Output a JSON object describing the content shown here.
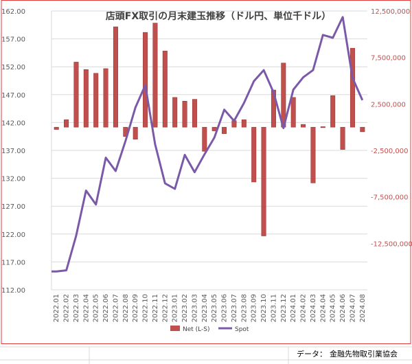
{
  "chart_data": {
    "type": "bar+line",
    "title": "店頭FX取引の月末建玉推移（ドル円、単位千ドル）",
    "categories": [
      "2022.01",
      "2022.02",
      "2022.03",
      "2022.04",
      "2022.05",
      "2022.06",
      "2022.07",
      "2022.08",
      "2022.09",
      "2022.10",
      "2022.11",
      "2022.12",
      "2023.01",
      "2023.02",
      "2023.03",
      "2023.04",
      "2023.05",
      "2023.06",
      "2023.07",
      "2023.08",
      "2023.09",
      "2023.10",
      "2023.11",
      "2023.12",
      "2024.01",
      "2024.02",
      "2024.03",
      "2024.04",
      "2024.05",
      "2024.06",
      "2024.07",
      "2024.08"
    ],
    "left_axis": {
      "ylim": [
        112,
        162
      ],
      "ticks": [
        "162.00",
        "157.00",
        "152.00",
        "147.00",
        "142.00",
        "137.00",
        "132.00",
        "127.00",
        "122.00",
        "117.00",
        "112.00"
      ]
    },
    "right_axis": {
      "ylim": [
        -17500000,
        12500000
      ],
      "ticks": [
        "12,500,000",
        "7,500,000",
        "2,500,000",
        "-2,500,000",
        "-7,500,000",
        "-12,500,000"
      ]
    },
    "series": [
      {
        "name": "Net (L-S)",
        "kind": "bar",
        "axis": "right",
        "color": "#c0504d",
        "values": [
          -250000,
          800000,
          7000000,
          6200000,
          5800000,
          6300000,
          10800000,
          -1000000,
          -1300000,
          10200000,
          11200000,
          8200000,
          3200000,
          2800000,
          3000000,
          -2600000,
          -400000,
          -700000,
          700000,
          800000,
          -5900000,
          -11700000,
          4000000,
          6900000,
          3200000,
          300000,
          -6000000,
          0,
          3400000,
          -2400000,
          8500000,
          -500000
        ]
      },
      {
        "name": "Spot",
        "kind": "line",
        "axis": "left",
        "color": "#7a5aa8",
        "values": [
          115.3,
          115.5,
          121.7,
          129.8,
          127.3,
          135.7,
          133.3,
          138.7,
          144.7,
          148.7,
          138.1,
          131.1,
          130.1,
          136.2,
          133.1,
          136.3,
          139.3,
          144.3,
          142.3,
          145.5,
          149.4,
          151.4,
          147.4,
          141.0,
          147.9,
          150.1,
          151.4,
          157.7,
          157.2,
          160.9,
          150.0,
          146.0
        ]
      }
    ],
    "legend": {
      "position": "bottom",
      "entries": [
        "Net (L-S)",
        "Spot"
      ]
    },
    "grid": true
  },
  "footer": {
    "label": "データ：",
    "source": "金融先物取引業協会"
  }
}
